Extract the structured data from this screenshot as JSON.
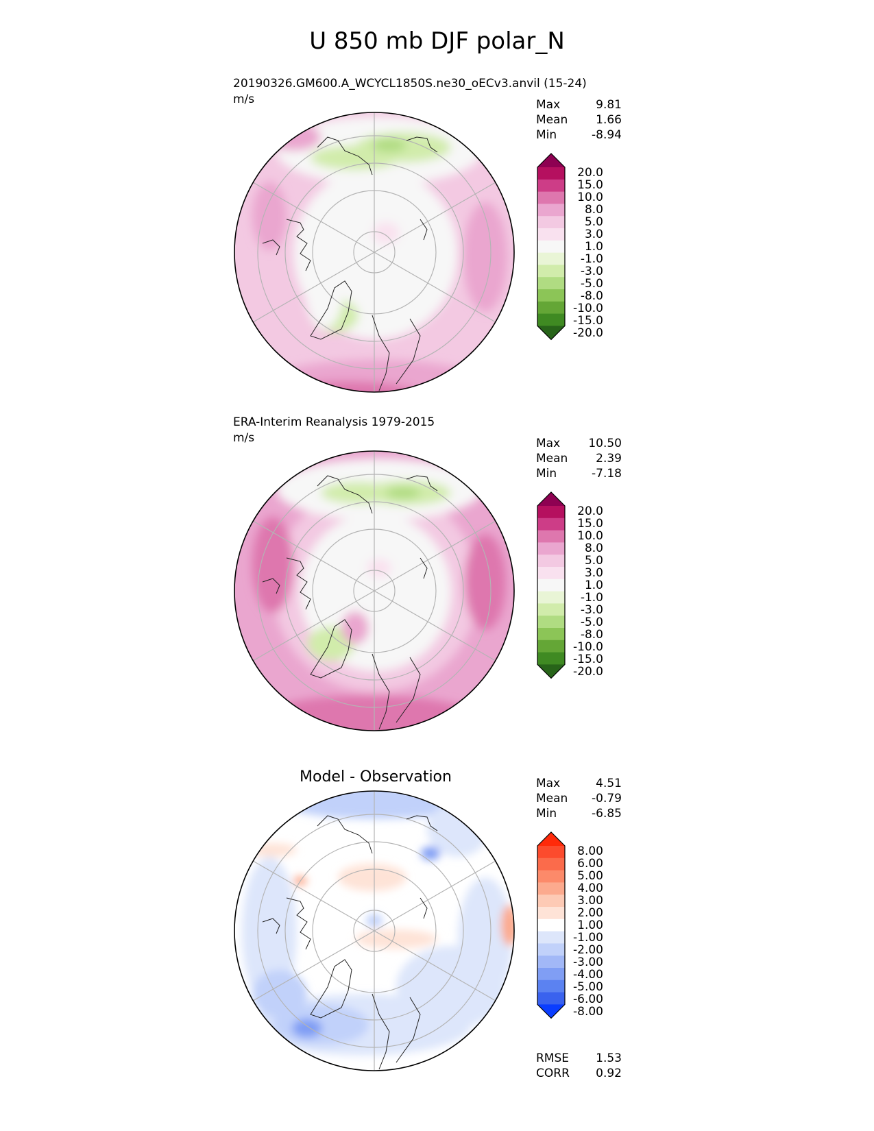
{
  "figure": {
    "title": "U 850 mb DJF polar_N"
  },
  "panels": [
    {
      "name": "model",
      "title": "20190326.GM600.A_WCYCL1850S.ne30_oECv3.anvil (15-24)",
      "units": "m/s",
      "stats": [
        {
          "label": "Max",
          "value": "9.81"
        },
        {
          "label": "Mean",
          "value": "1.66"
        },
        {
          "label": "Min",
          "value": "-8.94"
        }
      ],
      "colorbar": {
        "labels": [
          "20.0",
          "15.0",
          "10.0",
          "8.0",
          "5.0",
          "3.0",
          "1.0",
          "-1.0",
          "-3.0",
          "-5.0",
          "-8.0",
          "-10.0",
          "-15.0",
          "-20.0"
        ],
        "colors": [
          "#8e0152",
          "#b5105f",
          "#cd3d87",
          "#de77ae",
          "#eaa6cf",
          "#f3c9e2",
          "#f9e1ef",
          "#f7f7f7",
          "#e9f5d6",
          "#d1ecab",
          "#b0dc82",
          "#8cc557",
          "#64a636",
          "#3f8a22",
          "#276419"
        ]
      }
    },
    {
      "name": "observation",
      "title": "ERA-Interim Reanalysis 1979-2015",
      "units": "m/s",
      "stats": [
        {
          "label": "Max",
          "value": "10.50"
        },
        {
          "label": "Mean",
          "value": "2.39"
        },
        {
          "label": "Min",
          "value": "-7.18"
        }
      ],
      "colorbar": {
        "labels": [
          "20.0",
          "15.0",
          "10.0",
          "8.0",
          "5.0",
          "3.0",
          "1.0",
          "-1.0",
          "-3.0",
          "-5.0",
          "-8.0",
          "-10.0",
          "-15.0",
          "-20.0"
        ],
        "colors": [
          "#8e0152",
          "#b5105f",
          "#cd3d87",
          "#de77ae",
          "#eaa6cf",
          "#f3c9e2",
          "#f9e1ef",
          "#f7f7f7",
          "#e9f5d6",
          "#d1ecab",
          "#b0dc82",
          "#8cc557",
          "#64a636",
          "#3f8a22",
          "#276419"
        ]
      }
    },
    {
      "name": "difference",
      "title": "Model - Observation",
      "stats": [
        {
          "label": "Max",
          "value": "4.51"
        },
        {
          "label": "Mean",
          "value": "-0.79"
        },
        {
          "label": "Min",
          "value": "-6.85"
        }
      ],
      "extra_stats": [
        {
          "label": "RMSE",
          "value": "1.53"
        },
        {
          "label": "CORR",
          "value": "0.92"
        }
      ],
      "colorbar": {
        "labels": [
          "8.00",
          "6.00",
          "5.00",
          "4.00",
          "3.00",
          "2.00",
          "1.00",
          "-1.00",
          "-2.00",
          "-3.00",
          "-4.00",
          "-5.00",
          "-6.00",
          "-8.00"
        ],
        "colors": [
          "#ff2a0a",
          "#fc4b2d",
          "#fb6b4b",
          "#fc8a6a",
          "#fcaa8e",
          "#fdcab5",
          "#fee3d7",
          "#ffffff",
          "#dde6fb",
          "#c1d1fa",
          "#a2b8f7",
          "#809ef4",
          "#5b82f1",
          "#3a62ee",
          "#0a3dff"
        ]
      }
    }
  ],
  "chart_data": [
    {
      "type": "polar-contour-map",
      "title": "20190326.GM600.A_WCYCL1850S.ne30_oECv3.anvil (15-24)",
      "units": "m/s",
      "field": "U 850 mb DJF",
      "projection": "north polar stereographic",
      "stats": {
        "max": 9.81,
        "mean": 1.66,
        "min": -8.94
      },
      "contour_levels": [
        -20,
        -15,
        -10,
        -8,
        -5,
        -3,
        -1,
        1,
        3,
        5,
        8,
        10,
        15,
        20
      ]
    },
    {
      "type": "polar-contour-map",
      "title": "ERA-Interim Reanalysis 1979-2015",
      "units": "m/s",
      "field": "U 850 mb DJF",
      "projection": "north polar stereographic",
      "stats": {
        "max": 10.5,
        "mean": 2.39,
        "min": -7.18
      },
      "contour_levels": [
        -20,
        -15,
        -10,
        -8,
        -5,
        -3,
        -1,
        1,
        3,
        5,
        8,
        10,
        15,
        20
      ]
    },
    {
      "type": "polar-contour-map",
      "title": "Model - Observation",
      "field": "U 850 mb DJF difference",
      "projection": "north polar stereographic",
      "stats": {
        "max": 4.51,
        "mean": -0.79,
        "min": -6.85,
        "rmse": 1.53,
        "corr": 0.92
      },
      "contour_levels": [
        -8,
        -6,
        -5,
        -4,
        -3,
        -2,
        -1,
        1,
        2,
        3,
        4,
        5,
        6,
        8
      ]
    }
  ]
}
